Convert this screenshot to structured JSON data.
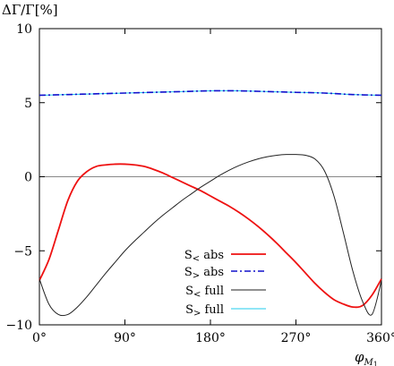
{
  "chart_data": {
    "type": "line",
    "ylabel": "ΔΓ/Γ[%]",
    "xlabel": "φ",
    "xlabel_sub": "M",
    "xlabel_subsub": "1",
    "xlim": [
      0,
      360
    ],
    "ylim": [
      -10,
      10
    ],
    "x_ticks": [
      0,
      90,
      180,
      270,
      360
    ],
    "x_tick_labels": [
      "0°",
      "90°",
      "180°",
      "270°",
      "360°"
    ],
    "y_ticks": [
      -10,
      -5,
      0,
      5,
      10
    ],
    "y_tick_labels": [
      "−10",
      "−5",
      "0",
      "5",
      "10"
    ],
    "grid": false,
    "zero_line": true,
    "legend_position": "bottom-center",
    "series": [
      {
        "name": "S< abs",
        "label_main": "S",
        "label_sub": "<",
        "label_tail": " abs",
        "color": "#ee1111",
        "dash": "solid",
        "x": [
          0,
          10,
          20,
          30,
          40,
          50,
          60,
          70,
          80,
          90,
          100,
          110,
          120,
          130,
          140,
          150,
          160,
          170,
          180,
          190,
          200,
          210,
          220,
          230,
          240,
          250,
          260,
          270,
          280,
          290,
          300,
          310,
          320,
          330,
          340,
          350,
          360
        ],
        "y": [
          -7.0,
          -5.6,
          -3.6,
          -1.6,
          -0.3,
          0.35,
          0.7,
          0.8,
          0.85,
          0.85,
          0.8,
          0.7,
          0.5,
          0.25,
          -0.05,
          -0.35,
          -0.65,
          -0.95,
          -1.3,
          -1.65,
          -2.0,
          -2.4,
          -2.85,
          -3.35,
          -3.9,
          -4.5,
          -5.15,
          -5.8,
          -6.5,
          -7.2,
          -7.8,
          -8.3,
          -8.6,
          -8.8,
          -8.7,
          -8.0,
          -6.9
        ]
      },
      {
        "name": "S> abs",
        "label_main": "S",
        "label_sub": ">",
        "label_tail": " abs",
        "color": "#1111cc",
        "dash": "dashdot",
        "x": [
          0,
          30,
          60,
          90,
          120,
          150,
          180,
          210,
          240,
          270,
          300,
          330,
          360
        ],
        "y": [
          5.5,
          5.55,
          5.6,
          5.65,
          5.7,
          5.75,
          5.8,
          5.8,
          5.75,
          5.7,
          5.65,
          5.55,
          5.5
        ]
      },
      {
        "name": "S< full",
        "label_main": "S",
        "label_sub": "<",
        "label_tail": " full",
        "color": "#222222",
        "dash": "solid",
        "x": [
          0,
          10,
          20,
          30,
          40,
          50,
          60,
          70,
          80,
          90,
          100,
          110,
          120,
          130,
          140,
          150,
          160,
          170,
          180,
          190,
          200,
          210,
          220,
          230,
          240,
          250,
          260,
          270,
          280,
          290,
          300,
          310,
          320,
          330,
          340,
          350,
          360
        ],
        "y": [
          -6.9,
          -8.6,
          -9.3,
          -9.3,
          -8.8,
          -8.1,
          -7.3,
          -6.5,
          -5.75,
          -5.0,
          -4.35,
          -3.75,
          -3.15,
          -2.6,
          -2.1,
          -1.6,
          -1.15,
          -0.7,
          -0.3,
          0.1,
          0.45,
          0.75,
          1.0,
          1.2,
          1.35,
          1.45,
          1.5,
          1.5,
          1.45,
          1.2,
          0.4,
          -1.3,
          -3.8,
          -6.4,
          -8.4,
          -9.3,
          -7.0
        ]
      },
      {
        "name": "S> full",
        "label_main": "S",
        "label_sub": ">",
        "label_tail": " full",
        "color": "#22ccee",
        "dash": "solid",
        "x": [
          0,
          30,
          60,
          90,
          120,
          150,
          180,
          210,
          240,
          270,
          300,
          330,
          360
        ],
        "y": [
          5.5,
          5.55,
          5.6,
          5.65,
          5.7,
          5.75,
          5.8,
          5.8,
          5.75,
          5.7,
          5.65,
          5.55,
          5.5
        ]
      }
    ]
  }
}
